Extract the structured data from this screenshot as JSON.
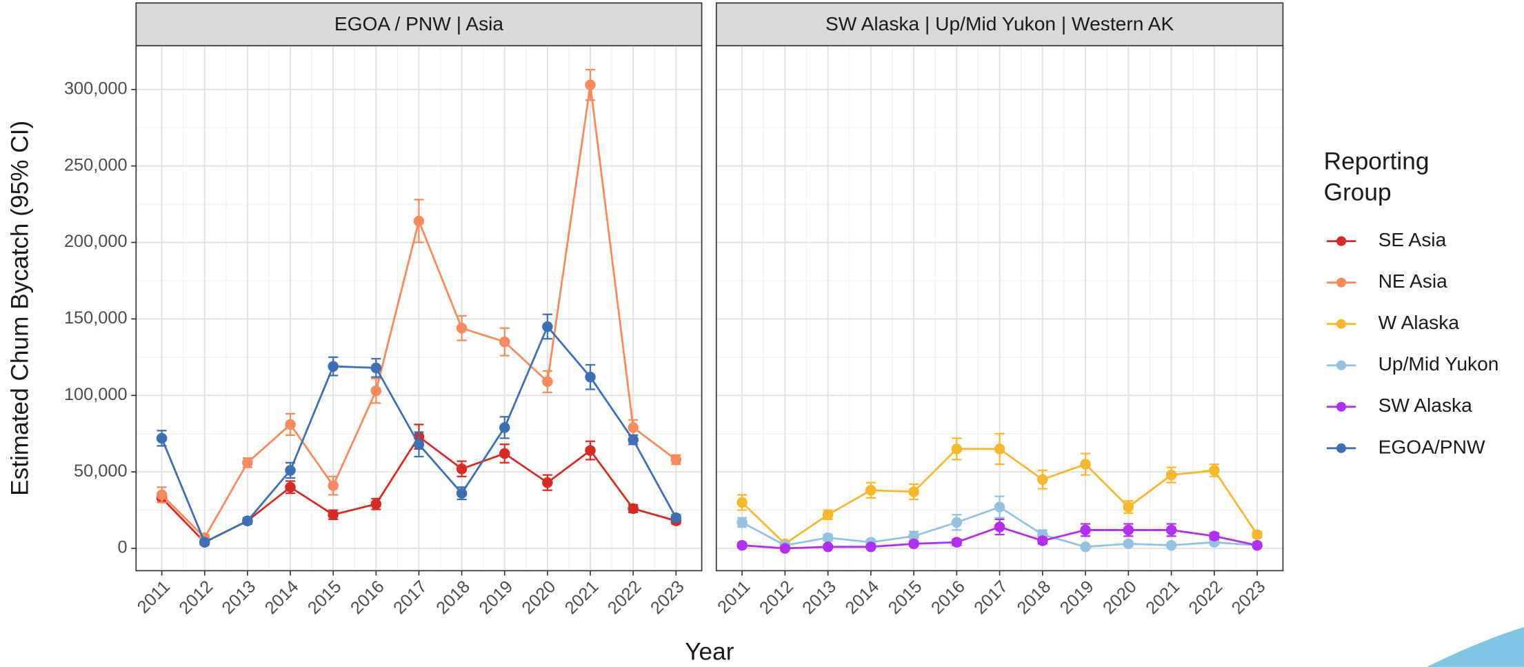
{
  "y_label": "Estimated Chum Bycatch (95% CI)",
  "x_label": "Year",
  "legend": {
    "title": "Reporting Group",
    "position": "right"
  },
  "chart_data": [
    {
      "type": "line",
      "title": "EGOA / PNW | Asia",
      "x": [
        2011,
        2012,
        2013,
        2014,
        2015,
        2016,
        2017,
        2018,
        2019,
        2020,
        2021,
        2022,
        2023
      ],
      "xlim": [
        2010.4,
        2023.6
      ],
      "xticks": [
        2011,
        2012,
        2013,
        2014,
        2015,
        2016,
        2017,
        2018,
        2019,
        2020,
        2021,
        2022,
        2023
      ],
      "ylim": [
        -14600,
        328600
      ],
      "yticks": [
        0,
        {
          "value": 50000,
          "label": "50,000"
        },
        {
          "value": 100000,
          "label": "100,000"
        },
        {
          "value": 150000,
          "label": "150,000"
        },
        {
          "value": 200000,
          "label": "200,000"
        },
        {
          "value": 250000,
          "label": "250,000"
        },
        {
          "value": 300000,
          "label": "300,000"
        }
      ],
      "grid": true,
      "series": [
        {
          "name": "SE Asia",
          "color": "#d92b26",
          "values": [
            33000,
            4000,
            18000,
            40000,
            22000,
            29000,
            73000,
            52000,
            62000,
            43000,
            64000,
            26000,
            18000
          ],
          "errors": [
            3000,
            1500,
            2000,
            4000,
            3000,
            3500,
            8000,
            5000,
            6000,
            5000,
            6000,
            2500,
            2000
          ]
        },
        {
          "name": "NE Asia",
          "color": "#f98a5b",
          "values": [
            35000,
            7000,
            56000,
            81000,
            41000,
            103000,
            214000,
            144000,
            135000,
            109000,
            303000,
            79000,
            58000
          ],
          "errors": [
            5000,
            2000,
            3000,
            7000,
            6000,
            8000,
            14000,
            8000,
            9000,
            7000,
            10000,
            5000,
            3000
          ]
        },
        {
          "name": "EGOA/PNW",
          "color": "#3b6fb6",
          "values": [
            72000,
            4000,
            18000,
            51000,
            119000,
            118000,
            68000,
            36000,
            79000,
            145000,
            112000,
            71000,
            20000
          ],
          "errors": [
            5000,
            1500,
            2000,
            5000,
            6000,
            6000,
            8000,
            4000,
            7000,
            8000,
            8000,
            3000,
            2000
          ]
        }
      ]
    },
    {
      "type": "line",
      "title": "SW Alaska | Up/Mid Yukon | Western AK",
      "x": [
        2011,
        2012,
        2013,
        2014,
        2015,
        2016,
        2017,
        2018,
        2019,
        2020,
        2021,
        2022,
        2023
      ],
      "xlim": [
        2010.4,
        2023.6
      ],
      "xticks": [
        2011,
        2012,
        2013,
        2014,
        2015,
        2016,
        2017,
        2018,
        2019,
        2020,
        2021,
        2022,
        2023
      ],
      "ylim": [
        -14600,
        328600
      ],
      "yticks": [
        0,
        {
          "value": 50000,
          "label": "50,000"
        },
        {
          "value": 100000,
          "label": "100,000"
        },
        {
          "value": 150000,
          "label": "150,000"
        },
        {
          "value": 200000,
          "label": "200,000"
        },
        {
          "value": 250000,
          "label": "250,000"
        },
        {
          "value": 300000,
          "label": "300,000"
        }
      ],
      "grid": true,
      "series": [
        {
          "name": "W Alaska",
          "color": "#fbb72a",
          "values": [
            30000,
            3000,
            22000,
            38000,
            37000,
            65000,
            65000,
            45000,
            55000,
            27000,
            48000,
            51000,
            9000
          ],
          "errors": [
            5000,
            1500,
            3000,
            5000,
            5000,
            7000,
            10000,
            6000,
            7000,
            4000,
            5000,
            4000,
            2000
          ]
        },
        {
          "name": "Up/Mid Yukon",
          "color": "#93c3e2",
          "values": [
            17000,
            2000,
            7000,
            4000,
            8000,
            17000,
            27000,
            9000,
            1000,
            3000,
            2000,
            4000,
            2000
          ],
          "errors": [
            3000,
            1000,
            2000,
            1500,
            3000,
            5000,
            7000,
            3000,
            1000,
            1500,
            1000,
            1500,
            1000
          ]
        },
        {
          "name": "SW Alaska",
          "color": "#b32ef0",
          "values": [
            2000,
            0,
            1000,
            1000,
            3000,
            4000,
            14000,
            5000,
            12000,
            12000,
            12000,
            8000,
            2000
          ],
          "errors": [
            1500,
            500,
            1000,
            1000,
            1500,
            2000,
            5000,
            2000,
            4000,
            4000,
            4000,
            2000,
            1000
          ]
        }
      ]
    }
  ]
}
